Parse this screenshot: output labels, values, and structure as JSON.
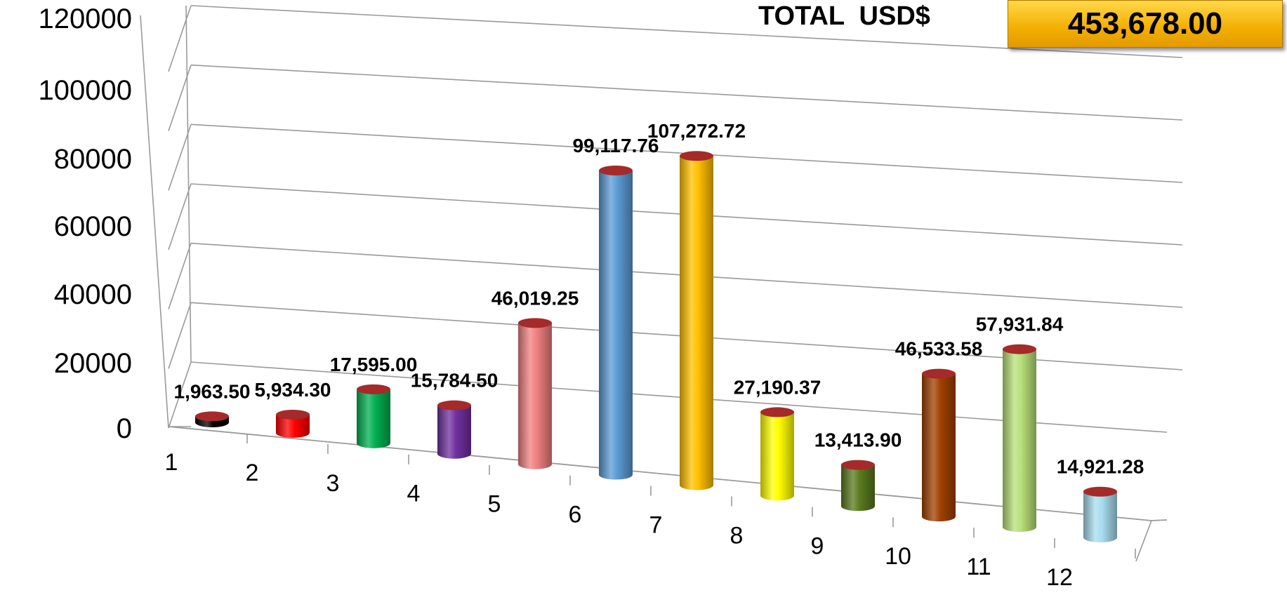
{
  "header": {
    "total_label": "TOTAL  USD$",
    "total_value": "453,678.00",
    "total_box_color": "#F5B400"
  },
  "chart_data": {
    "type": "bar",
    "style": "3d-cylinder",
    "categories": [
      "1",
      "2",
      "3",
      "4",
      "5",
      "6",
      "7",
      "8",
      "9",
      "10",
      "11",
      "12"
    ],
    "values": [
      1963.5,
      5934.3,
      17595.0,
      15784.5,
      46019.25,
      99117.76,
      107272.72,
      27190.37,
      13413.9,
      46533.58,
      57931.84,
      14921.28
    ],
    "data_labels": [
      "1,963.50",
      "5,934.30",
      "17,595.00",
      "15,784.50",
      "46,019.25",
      "99,117.76",
      "107,272.72",
      "27,190.37",
      "13,413.90",
      "46,533.58",
      "57,931.84",
      "14,921.28"
    ],
    "colors": [
      "#000000",
      "#FF0000",
      "#00B050",
      "#7030A0",
      "#F08080",
      "#5B9BD5",
      "#FFC000",
      "#FFFF00",
      "#5A7A1E",
      "#A04000",
      "#B8E07A",
      "#A8DDEF"
    ],
    "cap_color": "#A52A2A",
    "y_ticks": [
      0,
      20000,
      40000,
      60000,
      80000,
      100000,
      120000
    ],
    "y_tick_labels": [
      "0",
      "20000",
      "40000",
      "60000",
      "80000",
      "100000",
      "120000"
    ],
    "ylim": [
      0,
      120000
    ],
    "grid": true,
    "legend": "none",
    "title": "",
    "xlabel": "",
    "ylabel": ""
  }
}
